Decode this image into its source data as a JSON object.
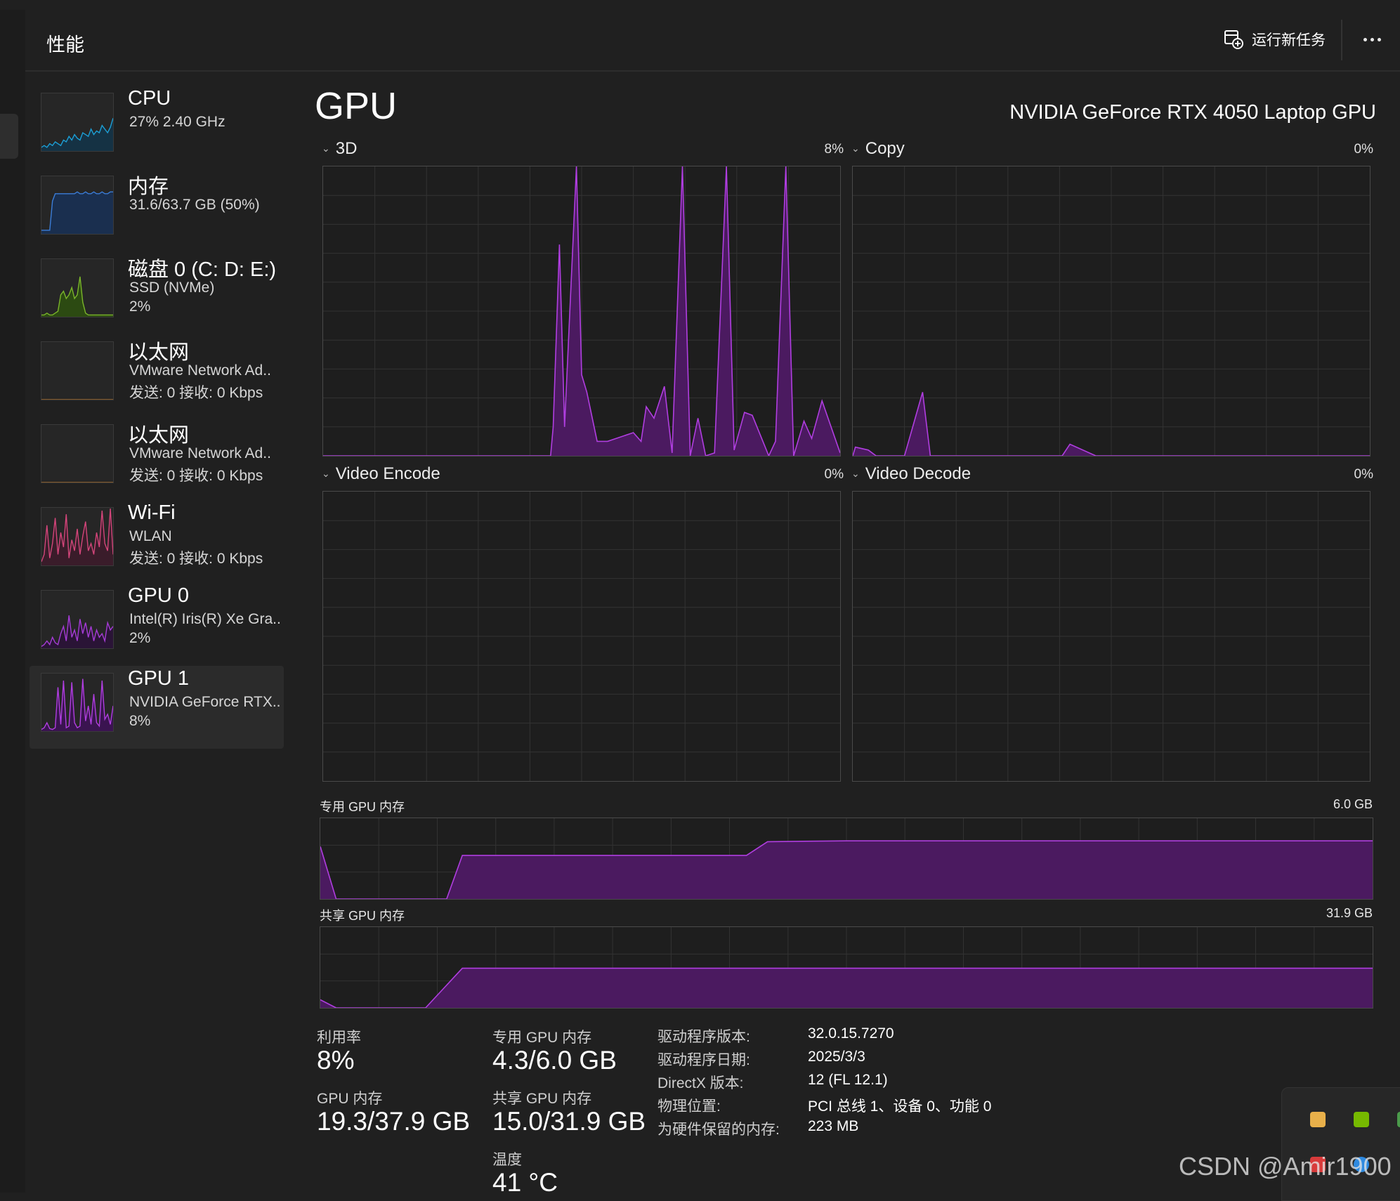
{
  "header": {
    "title": "性能",
    "run_task_label": "运行新任务"
  },
  "devices": [
    {
      "name": "CPU",
      "line1": "27%  2.40 GHz",
      "line2": "",
      "color": "#1c9fd6",
      "fill": "#153244"
    },
    {
      "name": "内存",
      "line1": "31.6/63.7 GB (50%)",
      "line2": "",
      "color": "#3b7dd8",
      "fill": "#1a2f4f"
    },
    {
      "name": "磁盘 0 (C: D: E:)",
      "line1": "SSD (NVMe)",
      "line2": "2%",
      "color": "#7ab52a",
      "fill": "#2c4a12"
    },
    {
      "name": "以太网",
      "line1": "VMware Network Ad..",
      "line2": "发送: 0 接收: 0 Kbps",
      "color": "#a36a2a",
      "fill": "#262626"
    },
    {
      "name": "以太网",
      "line1": "VMware Network Ad..",
      "line2": "发送: 0 接收: 0 Kbps",
      "color": "#a36a2a",
      "fill": "#262626"
    },
    {
      "name": "Wi-Fi",
      "line1": "WLAN",
      "line2": "发送: 0 接收: 0 Kbps",
      "color": "#d3457a",
      "fill": "#3a1c2a"
    },
    {
      "name": "GPU 0",
      "line1": "Intel(R) Iris(R) Xe Gra..",
      "line2": "2%",
      "color": "#a53bd6",
      "fill": "#2a1436"
    },
    {
      "name": "GPU 1",
      "line1": "NVIDIA GeForce RTX..",
      "line2": "8%",
      "color": "#b03ee0",
      "fill": "#3a1450"
    }
  ],
  "selected_device": "GPU 1",
  "gpu": {
    "heading": "GPU",
    "model": "NVIDIA GeForce RTX 4050 Laptop GPU"
  },
  "engines": [
    {
      "label": "3D",
      "percent": "8%"
    },
    {
      "label": "Copy",
      "percent": "0%"
    },
    {
      "label": "Video Encode",
      "percent": "0%"
    },
    {
      "label": "Video Decode",
      "percent": "0%"
    }
  ],
  "memory_graphs": {
    "dedicated": {
      "label": "专用 GPU 内存",
      "max": "6.0 GB"
    },
    "shared": {
      "label": "共享 GPU 内存",
      "max": "31.9 GB"
    }
  },
  "stats": {
    "utilization": {
      "label": "利用率",
      "value": "8%"
    },
    "dedicated_mem": {
      "label": "专用 GPU 内存",
      "value": "4.3/6.0 GB"
    },
    "gpu_mem": {
      "label": "GPU 内存",
      "value": "19.3/37.9 GB"
    },
    "shared_mem": {
      "label": "共享 GPU 内存",
      "value": "15.0/31.9 GB"
    },
    "temperature": {
      "label": "温度",
      "value": "41 °C"
    }
  },
  "details": [
    {
      "key": "驱动程序版本:",
      "value": "32.0.15.7270"
    },
    {
      "key": "驱动程序日期:",
      "value": "2025/3/3"
    },
    {
      "key": "DirectX 版本:",
      "value": "12 (FL 12.1)"
    },
    {
      "key": "物理位置:",
      "value": "PCI 总线 1、设备 0、功能 0"
    },
    {
      "key": "为硬件保留的内存:",
      "value": "223 MB"
    }
  ],
  "watermark": "CSDN @Amir1900",
  "colors": {
    "accent": "#b03ee0",
    "graph_fill": "#4b1a60",
    "background": "#202020"
  },
  "icons": [
    "new-task-icon",
    "more-options-icon",
    "chevron-down-icon",
    "tray-app-icon",
    "nvidia-icon",
    "network-icon"
  ]
}
